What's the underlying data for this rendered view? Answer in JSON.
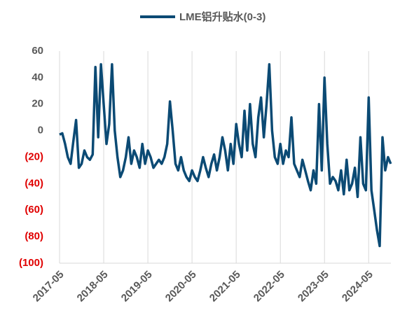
{
  "chart_data": {
    "type": "line",
    "categories": [
      "2017-05",
      null,
      null,
      null,
      null,
      null,
      null,
      null,
      null,
      null,
      null,
      null,
      null,
      null,
      null,
      null,
      "2018-05",
      null,
      null,
      null,
      null,
      null,
      null,
      null,
      null,
      null,
      null,
      null,
      null,
      null,
      null,
      null,
      "2019-05",
      null,
      null,
      null,
      null,
      null,
      null,
      null,
      null,
      null,
      null,
      null,
      null,
      null,
      null,
      null,
      "2020-05",
      null,
      null,
      null,
      null,
      null,
      null,
      null,
      null,
      null,
      null,
      null,
      null,
      null,
      null,
      null,
      "2021-05",
      null,
      null,
      null,
      null,
      null,
      null,
      null,
      null,
      null,
      null,
      null,
      null,
      null,
      null,
      null,
      "2022-05",
      null,
      null,
      null,
      null,
      null,
      null,
      null,
      null,
      null,
      null,
      null,
      null,
      null,
      null,
      null,
      "2023-05",
      null,
      null,
      null,
      null,
      null,
      null,
      null,
      null,
      null,
      null,
      null,
      null,
      null,
      null,
      null,
      "2024-05",
      null,
      null,
      null,
      null,
      null,
      null,
      null,
      null
    ],
    "series": [
      {
        "name": "LME铝升贴水(0-3)",
        "color": "#0b4a74",
        "values": [
          -3,
          -2,
          -10,
          -20,
          -25,
          -8,
          8,
          -28,
          -25,
          -15,
          -20,
          -22,
          -18,
          48,
          -5,
          50,
          20,
          -10,
          5,
          50,
          0,
          -20,
          -35,
          -30,
          -20,
          -5,
          -25,
          -15,
          -20,
          -28,
          -10,
          -25,
          -15,
          -20,
          -28,
          -25,
          -22,
          -25,
          -20,
          -10,
          22,
          0,
          -25,
          -30,
          -20,
          -30,
          -35,
          -38,
          -30,
          -35,
          -38,
          -30,
          -20,
          -28,
          -35,
          -25,
          -18,
          -30,
          -20,
          -5,
          -15,
          -30,
          -10,
          -25,
          5,
          -10,
          -20,
          15,
          -15,
          20,
          -10,
          -20,
          10,
          25,
          -5,
          20,
          50,
          0,
          -20,
          -25,
          -10,
          -25,
          -15,
          -20,
          10,
          -25,
          -30,
          -35,
          -22,
          -30,
          -38,
          -45,
          -30,
          -40,
          20,
          -30,
          40,
          -10,
          -40,
          -35,
          -38,
          -45,
          -30,
          -48,
          -22,
          -45,
          -40,
          -28,
          -50,
          -5,
          -40,
          -45,
          25,
          -45,
          -60,
          -75,
          -87,
          -5,
          -30,
          -20,
          -25
        ]
      }
    ],
    "ylim": [
      -100,
      60
    ],
    "yticks": [
      {
        "value": -100,
        "label": "(100)"
      },
      {
        "value": -80,
        "label": "(80)"
      },
      {
        "value": -60,
        "label": "(60)"
      },
      {
        "value": -40,
        "label": "(40)"
      },
      {
        "value": -20,
        "label": "(20)"
      },
      0,
      20,
      40,
      60
    ],
    "grid": true,
    "legend": "top"
  }
}
